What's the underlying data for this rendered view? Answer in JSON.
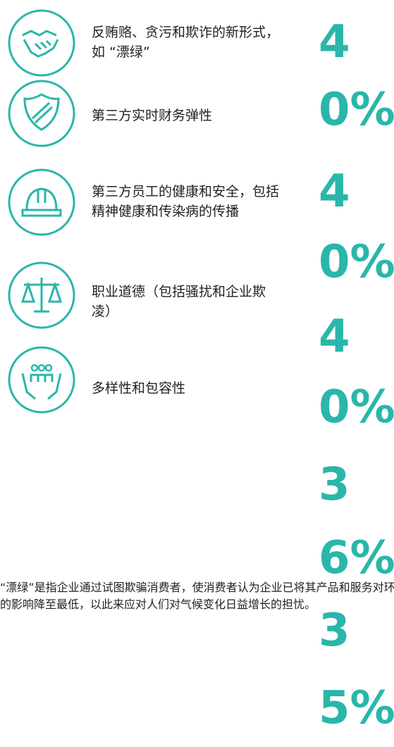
{
  "items": [
    {
      "label": "反贿赂、贪污和欺诈的新形式，如 “漂绿”"
    },
    {
      "label": "第三方实时财务弹性"
    },
    {
      "label": "第三方员工的健康和安全，包括精神健康和传染病的传播"
    },
    {
      "label": "职业道德（包括骚扰和企业欺凌）"
    },
    {
      "label": "多样性和包容性"
    }
  ],
  "percentages": [
    "40%",
    "40%",
    "40%",
    "36%",
    "35%"
  ],
  "note": "“漂绿”是指企业通过试图欺骗消费者，使消费者认为企业已将其产品和服务对环境的影响降至最低，以此来应对人们对气候变化日益增长的担忧。"
}
